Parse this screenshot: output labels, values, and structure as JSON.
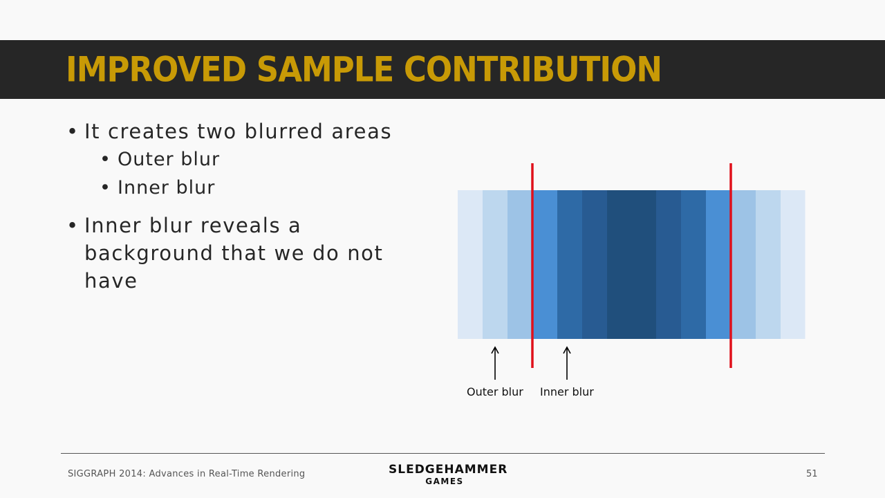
{
  "slide": {
    "title": "IMPROVED SAMPLE CONTRIBUTION",
    "bullets": [
      {
        "text": "It creates two blurred areas",
        "sub": [
          "Outer blur",
          "Inner blur"
        ]
      },
      {
        "text_lines": [
          "Inner blur reveals a",
          "background that we do not",
          "have"
        ]
      }
    ],
    "bullet_glyph": "•"
  },
  "diagram": {
    "band_colors": [
      "#dce8f6",
      "#bdd7ee",
      "#9dc3e6",
      "#4a8fd4",
      "#2e6aa6",
      "#285b92",
      "#204f7c",
      "#285b92",
      "#2e6aa6",
      "#4a8fd4",
      "#9dc3e6",
      "#bdd7ee",
      "#dce8f6"
    ],
    "marker_color": "#e0101b",
    "labels": {
      "outer": "Outer blur",
      "inner": "Inner blur"
    }
  },
  "footer": {
    "left": "SIGGRAPH 2014: Advances in Real-Time Rendering",
    "logo_line1": "SLEDGEHAMMER",
    "logo_line2": "GAMES",
    "page_number": "51"
  }
}
